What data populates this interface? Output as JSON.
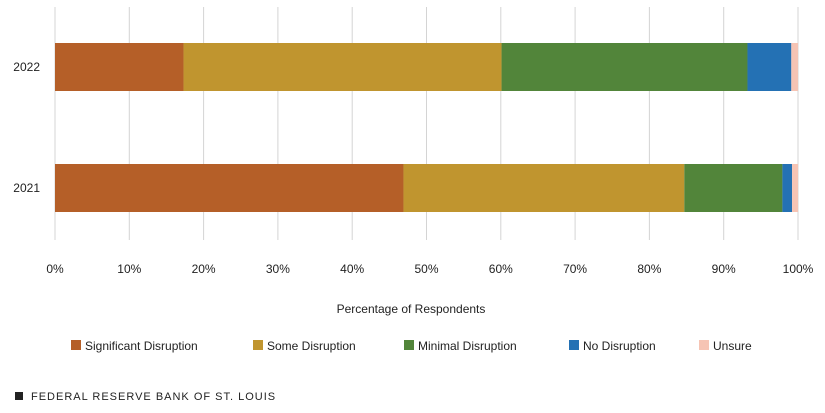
{
  "chart_data": {
    "type": "bar",
    "orientation": "horizontal",
    "stacked": true,
    "categories": [
      "2022",
      "2021"
    ],
    "series": [
      {
        "name": "Significant Disruption",
        "color": "#b55f28",
        "values": [
          17.3,
          46.9
        ]
      },
      {
        "name": "Some Disruption",
        "color": "#c0952f",
        "values": [
          42.8,
          37.8
        ]
      },
      {
        "name": "Minimal Disruption",
        "color": "#52853a",
        "values": [
          33.1,
          13.2
        ]
      },
      {
        "name": "No Disruption",
        "color": "#2471b4",
        "values": [
          5.9,
          1.3
        ]
      },
      {
        "name": "Unsure",
        "color": "#f6c4b4",
        "values": [
          0.9,
          0.8
        ]
      }
    ],
    "xlabel": "Percentage of Respondents",
    "xlim": [
      0,
      100
    ],
    "xticks": [
      0,
      10,
      20,
      30,
      40,
      50,
      60,
      70,
      80,
      90,
      100
    ],
    "xtick_format": "percent",
    "grid": "vertical",
    "legend_position": "bottom"
  },
  "footer": {
    "source": "FEDERAL RESERVE BANK OF ST. LOUIS"
  }
}
